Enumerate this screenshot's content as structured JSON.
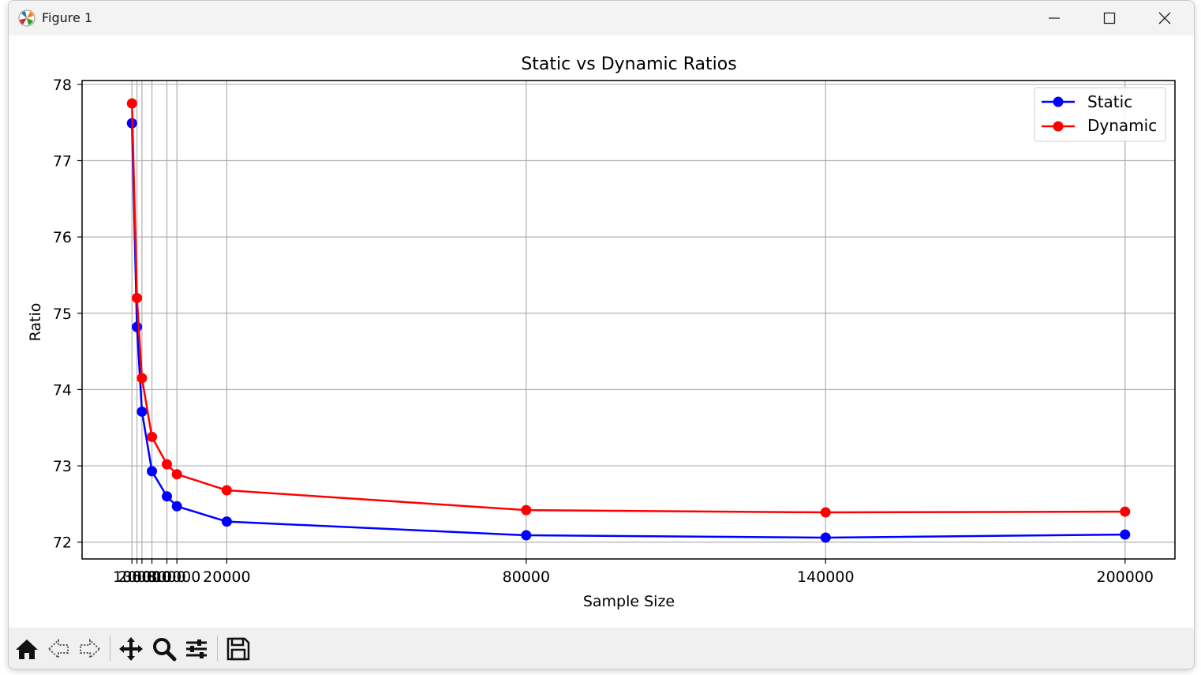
{
  "window": {
    "title": "Figure 1"
  },
  "toolbar": {
    "items": [
      "home-icon",
      "back-icon",
      "forward-icon",
      "pan-icon",
      "zoom-icon",
      "configure-subplots-icon",
      "save-icon"
    ]
  },
  "chart_data": {
    "type": "line",
    "title": "Static vs Dynamic Ratios",
    "xlabel": "Sample Size",
    "ylabel": "Ratio",
    "x": [
      1000,
      2000,
      3000,
      5000,
      8000,
      10000,
      20000,
      80000,
      140000,
      200000
    ],
    "xticks": [
      1000,
      2000,
      3000,
      5000,
      8000,
      10000,
      20000,
      80000,
      140000,
      200000
    ],
    "xlim": [
      -9000,
      210000
    ],
    "ylim": [
      71.78,
      78.05
    ],
    "yticks": [
      72,
      73,
      74,
      75,
      76,
      77,
      78
    ],
    "grid": true,
    "legend": "top-right",
    "series": [
      {
        "name": "Static",
        "color": "#0000ff",
        "values": [
          77.49,
          74.82,
          73.71,
          72.93,
          72.6,
          72.47,
          72.27,
          72.09,
          72.06,
          72.1
        ]
      },
      {
        "name": "Dynamic",
        "color": "#ff0000",
        "values": [
          77.75,
          75.2,
          74.15,
          73.38,
          73.02,
          72.89,
          72.68,
          72.42,
          72.39,
          72.4
        ]
      }
    ]
  }
}
